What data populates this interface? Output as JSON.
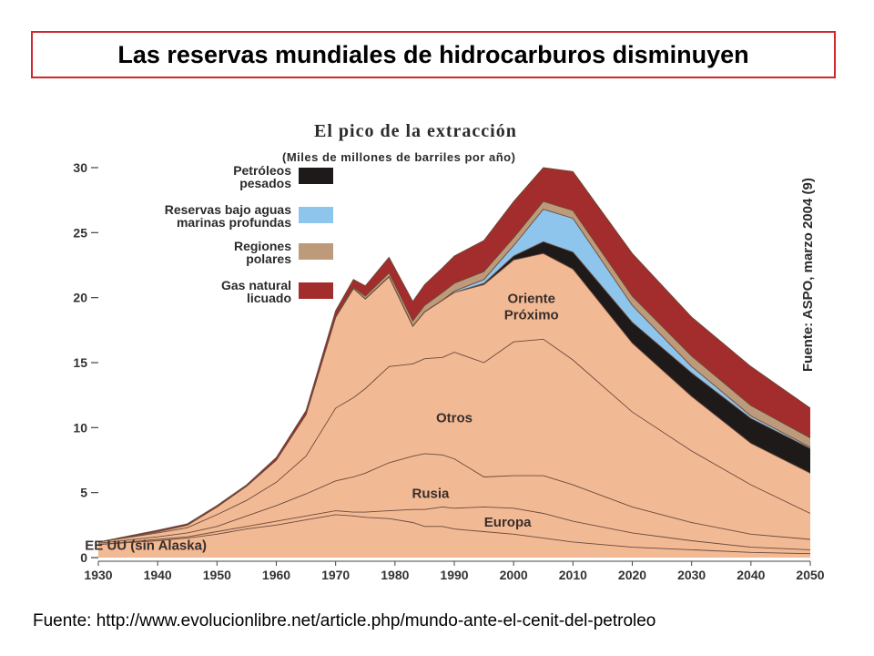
{
  "slide_title": "Las reservas mundiales de hidrocarburos disminuyen",
  "source_text": "Fuente: http://www.evolucionlibre.net/article.php/mundo-ante-el-cenit-del-petroleo",
  "chart_data": {
    "type": "area",
    "title": "El pico de la extracción",
    "subtitle": "(Miles de millones de barriles por año)",
    "side_source": "Fuente: ASPO, marzo 2004 (9)",
    "xlim": [
      1930,
      2050
    ],
    "ylim": [
      0,
      30
    ],
    "x_ticks": [
      1930,
      1940,
      1950,
      1960,
      1970,
      1980,
      1990,
      2000,
      2010,
      2020,
      2030,
      2040,
      2050
    ],
    "y_ticks": [
      0,
      5,
      10,
      15,
      20,
      25,
      30
    ],
    "x": [
      1930,
      1940,
      1945,
      1950,
      1955,
      1960,
      1965,
      1970,
      1973,
      1975,
      1979,
      1983,
      1985,
      1988,
      1990,
      1995,
      2000,
      2005,
      2010,
      2020,
      2030,
      2040,
      2050
    ],
    "series": [
      {
        "name": "EE UU (sin Alaska)",
        "label_lines": [
          "EE UU (sin Alaska)"
        ],
        "color": "#f2b995",
        "values": [
          1.0,
          1.3,
          1.5,
          1.8,
          2.2,
          2.5,
          2.9,
          3.3,
          3.2,
          3.1,
          3.0,
          2.7,
          2.4,
          2.4,
          2.2,
          2.0,
          1.8,
          1.5,
          1.2,
          0.8,
          0.6,
          0.4,
          0.3
        ]
      },
      {
        "name": "Europa",
        "label_lines": [
          "Europa"
        ],
        "color": "#f2b995",
        "values": [
          0.0,
          0.1,
          0.1,
          0.2,
          0.2,
          0.3,
          0.3,
          0.3,
          0.3,
          0.4,
          0.6,
          1.0,
          1.3,
          1.5,
          1.6,
          1.9,
          2.0,
          1.9,
          1.6,
          1.1,
          0.7,
          0.4,
          0.3
        ]
      },
      {
        "name": "Rusia",
        "label_lines": [
          "Rusia"
        ],
        "color": "#f2b995",
        "values": [
          0.1,
          0.2,
          0.3,
          0.4,
          0.8,
          1.2,
          1.7,
          2.3,
          2.7,
          3.0,
          3.7,
          4.1,
          4.3,
          4.0,
          3.8,
          2.3,
          2.5,
          2.9,
          2.8,
          2.0,
          1.4,
          1.0,
          0.8
        ]
      },
      {
        "name": "Otros",
        "label_lines": [
          "Otros"
        ],
        "color": "#f2b995",
        "values": [
          0.1,
          0.3,
          0.4,
          0.9,
          1.2,
          1.8,
          2.9,
          5.6,
          6.1,
          6.5,
          7.4,
          7.1,
          7.3,
          7.5,
          8.2,
          8.8,
          10.3,
          10.5,
          9.6,
          7.3,
          5.5,
          3.8,
          2.0
        ]
      },
      {
        "name": "Oriente Próximo",
        "label_lines": [
          "Oriente",
          "Próximo"
        ],
        "color": "#f2b995",
        "values": [
          0.0,
          0.1,
          0.2,
          0.6,
          1.1,
          1.7,
          3.2,
          7.0,
          8.4,
          6.9,
          6.9,
          2.9,
          3.6,
          4.4,
          4.6,
          6.0,
          6.3,
          6.6,
          7.0,
          5.3,
          4.2,
          3.2,
          3.1
        ]
      },
      {
        "name": "Petróleos pesados",
        "label_lines": [
          "Petróleos",
          "pesados"
        ],
        "color": "#1e1a1a",
        "values": [
          0,
          0,
          0,
          0,
          0,
          0,
          0,
          0,
          0,
          0,
          0,
          0,
          0,
          0,
          0,
          0.1,
          0.3,
          0.9,
          1.3,
          1.6,
          1.8,
          1.9,
          1.9
        ]
      },
      {
        "name": "Reservas bajo aguas marinas profundas",
        "label_lines": [
          "Reservas bajo aguas",
          "marinas profundas"
        ],
        "color": "#8ec5ec",
        "values": [
          0,
          0,
          0,
          0,
          0,
          0,
          0,
          0,
          0,
          0,
          0,
          0,
          0,
          0,
          0.1,
          0.3,
          0.8,
          2.5,
          2.6,
          1.3,
          0.5,
          0.2,
          0.1
        ]
      },
      {
        "name": "Regiones polares",
        "label_lines": [
          "Regiones",
          "polares"
        ],
        "color": "#bd9b7a",
        "values": [
          0,
          0,
          0,
          0,
          0,
          0,
          0,
          0.1,
          0.1,
          0.2,
          0.3,
          0.4,
          0.5,
          0.6,
          0.6,
          0.6,
          0.6,
          0.6,
          0.6,
          0.7,
          0.8,
          0.8,
          0.7
        ]
      },
      {
        "name": "Gas natural licuado",
        "label_lines": [
          "Gas natural",
          "licuado"
        ],
        "color": "#a32c2c",
        "values": [
          0,
          0.1,
          0.1,
          0.1,
          0.1,
          0.2,
          0.3,
          0.4,
          0.6,
          0.8,
          1.2,
          1.5,
          1.6,
          1.9,
          2.1,
          2.4,
          2.8,
          2.6,
          3.0,
          3.3,
          3.0,
          3.0,
          2.3
        ]
      }
    ],
    "legend_position": "top-left",
    "grid": false
  }
}
